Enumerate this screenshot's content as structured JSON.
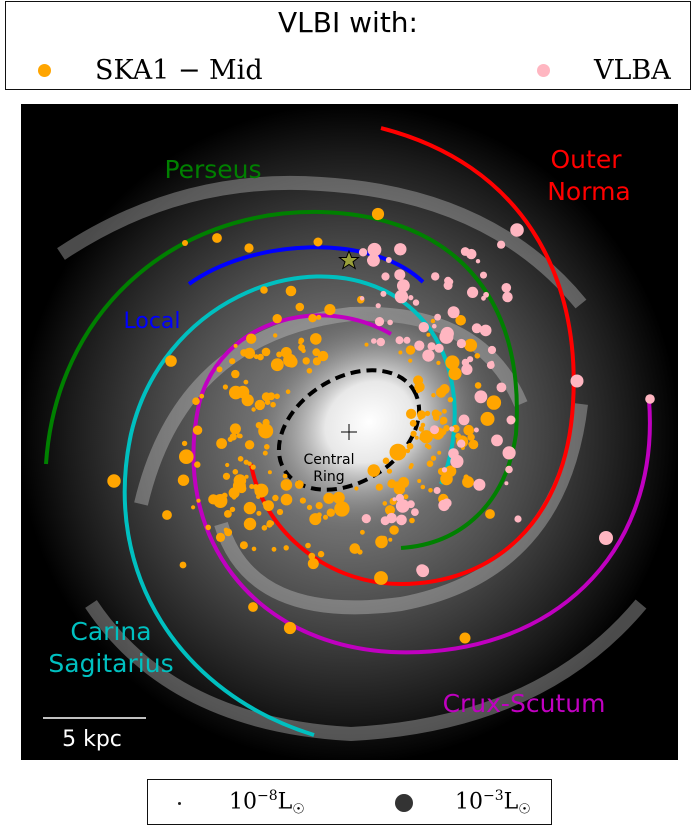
{
  "legend": {
    "title": "VLBI with:",
    "items": [
      {
        "label": "SKA1 − Mid",
        "color": "#ffa500"
      },
      {
        "label": "VLBA",
        "color": "#ffb6c1"
      }
    ]
  },
  "chart_data": {
    "type": "scatter",
    "title": "",
    "background": "face-on Milky Way artist's image (greyscale)",
    "arms": [
      {
        "name": "Perseus",
        "color": "#008000"
      },
      {
        "name": "Local",
        "color": "#0000ff"
      },
      {
        "name": "Carina Sagitarius",
        "label_lines": [
          "Carina",
          "Sagitarius"
        ],
        "color": "#00c0c0"
      },
      {
        "name": "Crux-Scutum",
        "color": "#c000c0"
      },
      {
        "name": "Outer Norma",
        "label_lines": [
          "Outer",
          "Norma"
        ],
        "color": "#ff0000"
      }
    ],
    "central_ring": {
      "label_lines": [
        "Central",
        "Ring"
      ],
      "style": "dashed"
    },
    "sun_marker": "star-icon",
    "galactic_center_marker": "plus",
    "scale_bar": {
      "label": "5 kpc",
      "length_kpc": 5
    },
    "size_legend": [
      {
        "mantissa": "10",
        "exponent": "−8",
        "unit": "L",
        "unit_sub": "☉"
      },
      {
        "mantissa": "10",
        "exponent": "−3",
        "unit": "L",
        "unit_sub": "☉"
      }
    ],
    "series": [
      {
        "name": "SKA1 − Mid",
        "color": "#ffa500"
      },
      {
        "name": "VLBA",
        "color": "#ffb6c1"
      }
    ]
  }
}
